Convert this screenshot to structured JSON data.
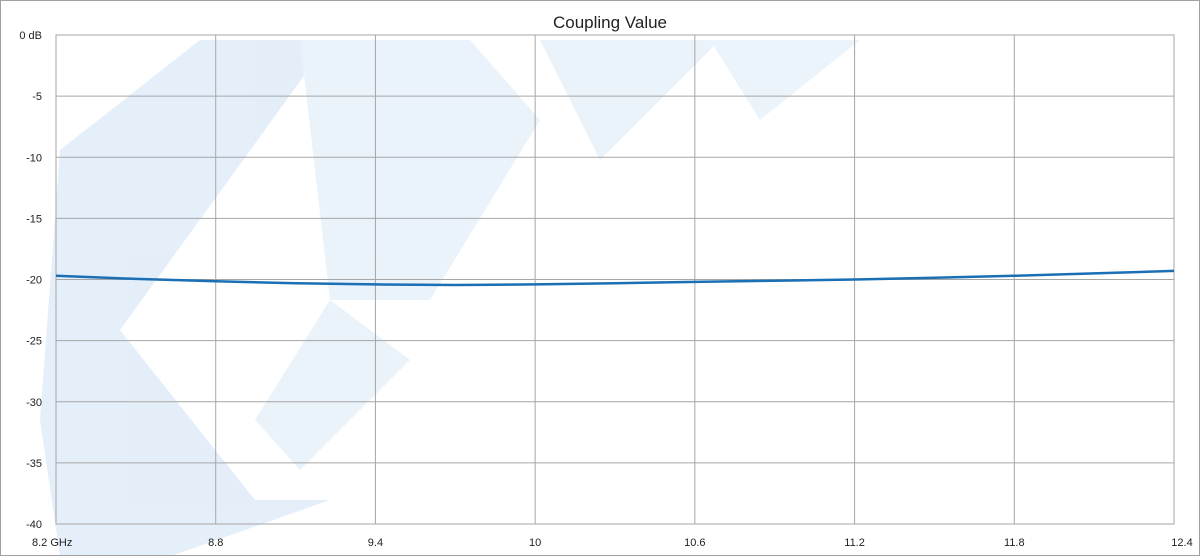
{
  "chart_data": {
    "type": "line",
    "title": "Coupling Value",
    "xlabel": "",
    "ylabel": "",
    "xlim": [
      8.2,
      12.4
    ],
    "ylim": [
      -40,
      0
    ],
    "x_ticks": [
      8.2,
      8.8,
      9.4,
      10,
      10.6,
      11.2,
      11.8,
      12.4
    ],
    "x_tick_labels": [
      "8.2 GHz",
      "8.8",
      "9.4",
      "10",
      "10.6",
      "11.2",
      "11.8",
      "12.4"
    ],
    "y_ticks": [
      0,
      -5,
      -10,
      -15,
      -20,
      -25,
      -30,
      -35,
      -40
    ],
    "y_tick_labels": [
      "0 dB",
      "-5",
      "-10",
      "-15",
      "-20",
      "-25",
      "-30",
      "-35",
      "-40"
    ],
    "grid": true,
    "series": [
      {
        "color": "#1a6fb5",
        "x": [
          8.2,
          8.5,
          8.8,
          9.1,
          9.4,
          9.7,
          10.0,
          10.3,
          10.6,
          10.9,
          11.2,
          11.5,
          11.8,
          12.1,
          12.4
        ],
        "values": [
          -19.7,
          -19.95,
          -20.15,
          -20.3,
          -20.4,
          -20.45,
          -20.4,
          -20.3,
          -20.2,
          -20.1,
          -20.0,
          -19.85,
          -19.7,
          -19.5,
          -19.3
        ]
      }
    ]
  },
  "colors": {
    "grid": "#a6a6a6",
    "line": "#1a6fb5",
    "watermark": "#d6e6f7"
  }
}
